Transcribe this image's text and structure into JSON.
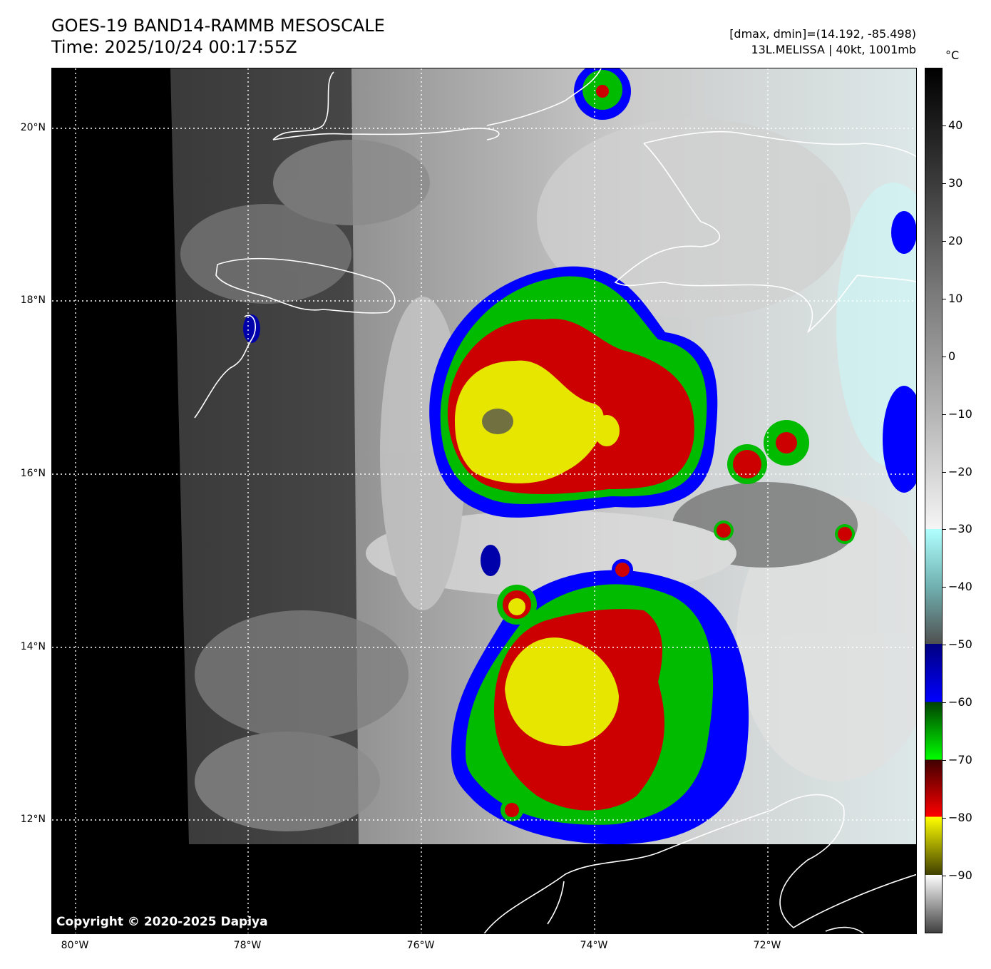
{
  "header": {
    "title_line1": "GOES-19 BAND14-RAMMB MESOSCALE",
    "title_line2": "Time: 2025/10/24 00:17:55Z",
    "meta_line1": "[dmax, dmin]=(14.192, -85.498)",
    "meta_line2": "13L.MELISSA | 40kt, 1001mb"
  },
  "map": {
    "copyright": "Copyright © 2020-2025 Dapiya",
    "lat_labels": [
      "20°N",
      "18°N",
      "16°N",
      "14°N",
      "12°N"
    ],
    "lon_labels": [
      "80°W",
      "78°W",
      "76°W",
      "74°W",
      "72°W"
    ],
    "extent": {
      "lon_min": -80.27,
      "lon_max": -70.28,
      "lat_min": 10.7,
      "lat_max": 20.7
    }
  },
  "colorbar": {
    "unit": "°C",
    "ticks": [
      "40",
      "30",
      "20",
      "10",
      "0",
      "−10",
      "−20",
      "−30",
      "−40",
      "−50",
      "−60",
      "−70",
      "−80",
      "−90"
    ],
    "range": [
      -100,
      50
    ],
    "colors": {
      "warm_top": "#000000",
      "gray_mid": "#a0a0a0",
      "white": "#ffffff",
      "cyan": "#b0ffff",
      "dark_gray": "#404040",
      "blue_dark": "#000080",
      "blue": "#0000ff",
      "green": "#00cc00",
      "red_dark": "#800000",
      "red": "#ff0000",
      "yellow": "#ffff00",
      "olive": "#606000"
    }
  }
}
